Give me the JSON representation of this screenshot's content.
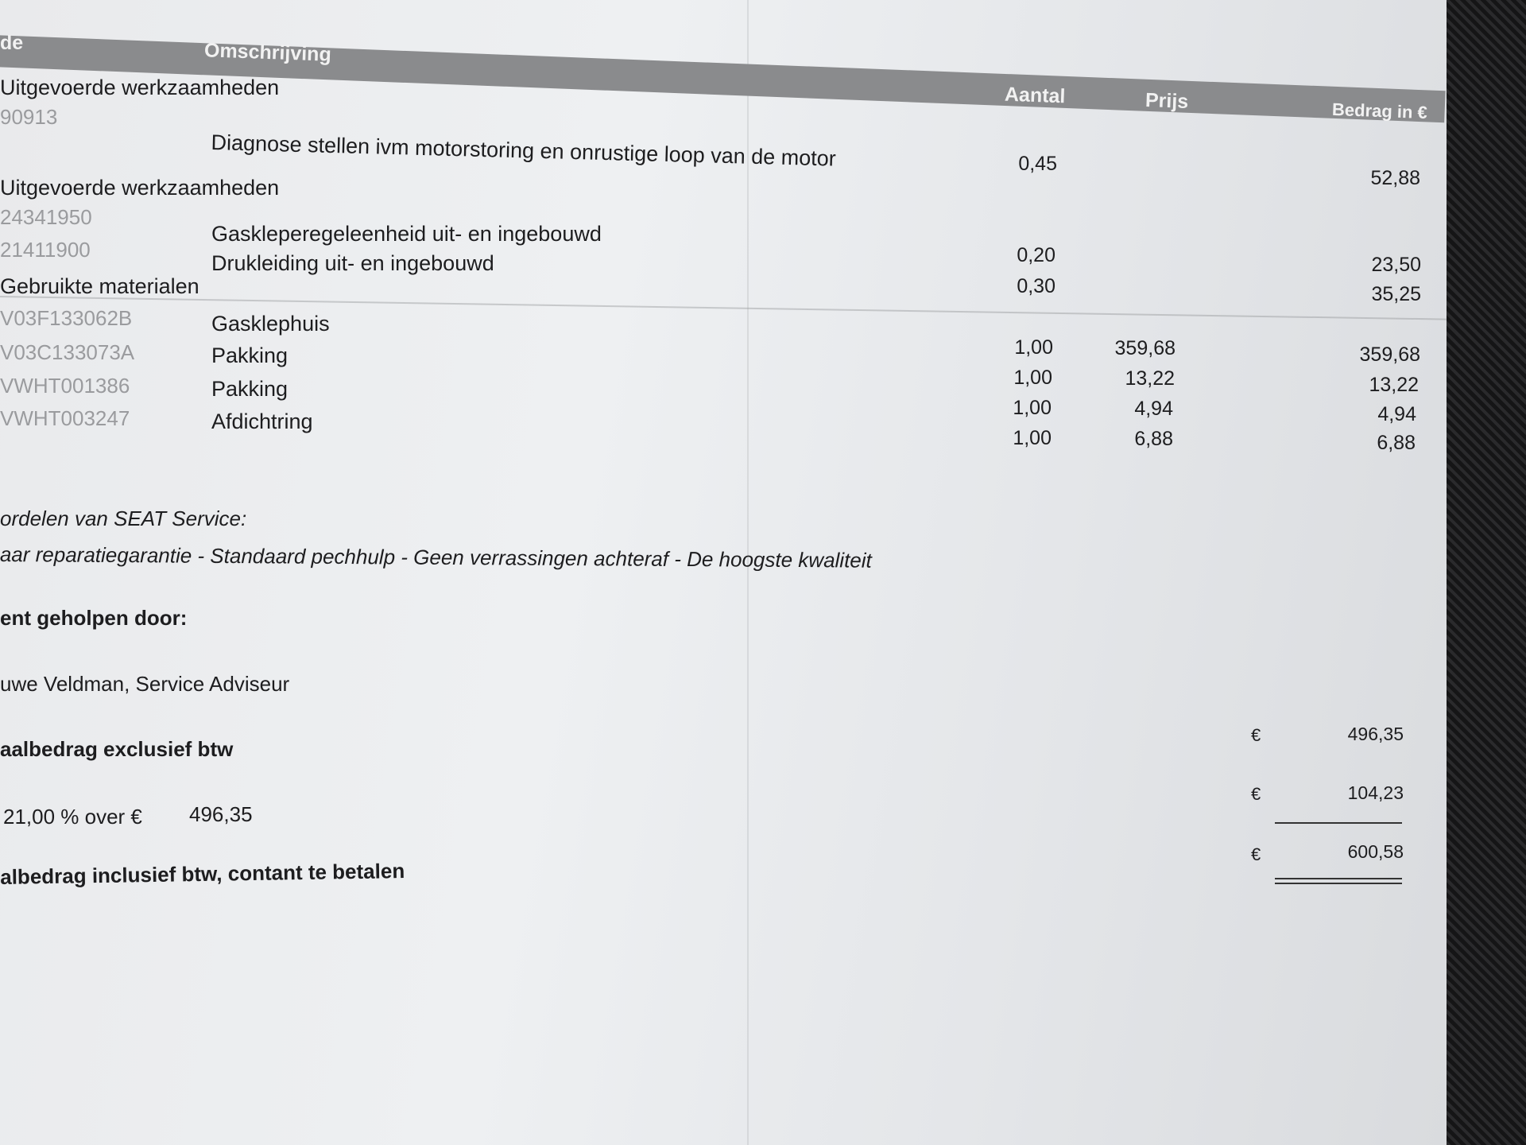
{
  "header": {
    "code": "de",
    "description": "Omschrijving",
    "quantity": "Aantal",
    "price": "Prijs",
    "amount": "Bedrag in €"
  },
  "sections": [
    {
      "title": "Uitgevoerde werkzaamheden",
      "rows": [
        {
          "code": "90913",
          "description": "Diagnose stellen ivm motorstoring en onrustige loop van de motor",
          "quantity": "0,45",
          "price": "",
          "amount": "52,88"
        }
      ]
    },
    {
      "title": "Uitgevoerde werkzaamheden",
      "rows": [
        {
          "code": "24341950",
          "description": "Gaskleperegeleenheid uit- en ingebouwd",
          "quantity": "0,20",
          "price": "",
          "amount": "23,50"
        },
        {
          "code": "21411900",
          "description": "Drukleiding uit- en ingebouwd",
          "quantity": "0,30",
          "price": "",
          "amount": "35,25"
        }
      ]
    },
    {
      "title": "Gebruikte materialen",
      "rows": [
        {
          "code": "V03F133062B",
          "description": "Gasklephuis",
          "quantity": "1,00",
          "price": "359,68",
          "amount": "359,68"
        },
        {
          "code": "V03C133073A",
          "description": "Pakking",
          "quantity": "1,00",
          "price": "13,22",
          "amount": "13,22"
        },
        {
          "code": "VWHT001386",
          "description": "Pakking",
          "quantity": "1,00",
          "price": "4,94",
          "amount": "4,94"
        },
        {
          "code": "VWHT003247",
          "description": "Afdichtring",
          "quantity": "1,00",
          "price": "6,88",
          "amount": "6,88"
        }
      ]
    }
  ],
  "benefits": {
    "title": "ordelen van SEAT Service:",
    "text": "aar reparatiegarantie - Standaard pechhulp - Geen verrassingen achteraf - De hoogste kwaliteit"
  },
  "helped_by": {
    "title": "ent geholpen door:",
    "name": "uwe Veldman, Service Adviseur"
  },
  "totals": {
    "excl_label": "aalbedrag exclusief btw",
    "excl_currency": "€",
    "excl_amount": "496,35",
    "vat_label": "21,00 % over €",
    "vat_base": "496,35",
    "vat_currency": "€",
    "vat_amount": "104,23",
    "incl_label": "albedrag inclusief btw, contant te betalen",
    "incl_currency": "€",
    "incl_amount": "600,58"
  }
}
